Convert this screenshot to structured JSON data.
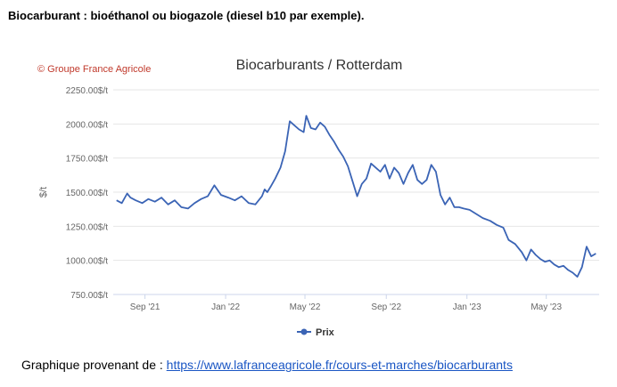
{
  "heading": "Biocarburant : bioéthanol ou biogazole (diesel b10 par exemple).",
  "watermark": "© Groupe France Agricole",
  "footer": {
    "prefix": "Graphique provenant de : ",
    "link_text": "https://www.lafranceagricole.fr/cours-et-marches/biocarburants"
  },
  "colors": {
    "line": "#3b64b5",
    "grid": "#e6e6e6",
    "watermark": "#c0392b",
    "link": "#1a56c4"
  },
  "chart_data": {
    "type": "line",
    "title": "Biocarburants / Rotterdam",
    "xlabel": "",
    "ylabel": "$/t",
    "ylim": [
      750,
      2250
    ],
    "yticks": [
      750,
      1000,
      1250,
      1500,
      1750,
      2000,
      2250
    ],
    "ytick_labels": [
      "750.00$/t",
      "1000.00$/t",
      "1250.00$/t",
      "1500.00$/t",
      "1750.00$/t",
      "2000.00$/t",
      "2250.00$/t"
    ],
    "xlim": [
      "2021-07-15",
      "2023-07-20"
    ],
    "xticks": [
      "2021-09-01",
      "2022-01-01",
      "2022-05-01",
      "2022-09-01",
      "2023-01-01",
      "2023-05-01"
    ],
    "xtick_labels": [
      "Sep '21",
      "Jan '22",
      "May '22",
      "Sep '22",
      "Jan '23",
      "May '23"
    ],
    "grid": true,
    "legend": "bottom-center",
    "series": [
      {
        "name": "Prix",
        "x": [
          "2021-07-20",
          "2021-07-28",
          "2021-08-05",
          "2021-08-10",
          "2021-08-18",
          "2021-08-28",
          "2021-09-06",
          "2021-09-16",
          "2021-09-26",
          "2021-10-06",
          "2021-10-16",
          "2021-10-26",
          "2021-11-05",
          "2021-11-15",
          "2021-11-25",
          "2021-12-05",
          "2021-12-15",
          "2021-12-25",
          "2022-01-05",
          "2022-01-15",
          "2022-01-25",
          "2022-02-05",
          "2022-02-15",
          "2022-02-25",
          "2022-03-01",
          "2022-03-05",
          "2022-03-10",
          "2022-03-17",
          "2022-03-25",
          "2022-04-01",
          "2022-04-08",
          "2022-04-15",
          "2022-04-22",
          "2022-04-29",
          "2022-05-03",
          "2022-05-10",
          "2022-05-17",
          "2022-05-24",
          "2022-05-31",
          "2022-06-07",
          "2022-06-14",
          "2022-06-21",
          "2022-06-28",
          "2022-07-05",
          "2022-07-12",
          "2022-07-19",
          "2022-07-26",
          "2022-08-02",
          "2022-08-09",
          "2022-08-16",
          "2022-08-23",
          "2022-08-30",
          "2022-09-06",
          "2022-09-13",
          "2022-09-20",
          "2022-09-27",
          "2022-10-04",
          "2022-10-11",
          "2022-10-18",
          "2022-10-25",
          "2022-11-01",
          "2022-11-08",
          "2022-11-15",
          "2022-11-22",
          "2022-11-29",
          "2022-12-06",
          "2022-12-13",
          "2022-12-20",
          "2022-12-27",
          "2023-01-05",
          "2023-01-15",
          "2023-01-25",
          "2023-02-05",
          "2023-02-15",
          "2023-02-25",
          "2023-03-05",
          "2023-03-15",
          "2023-03-25",
          "2023-04-01",
          "2023-04-08",
          "2023-04-15",
          "2023-04-22",
          "2023-04-29",
          "2023-05-06",
          "2023-05-13",
          "2023-05-20",
          "2023-05-27",
          "2023-06-03",
          "2023-06-10",
          "2023-06-17",
          "2023-06-24",
          "2023-07-01",
          "2023-07-08",
          "2023-07-15"
        ],
        "values": [
          1440,
          1420,
          1490,
          1460,
          1440,
          1420,
          1450,
          1430,
          1460,
          1410,
          1440,
          1390,
          1380,
          1420,
          1450,
          1470,
          1550,
          1480,
          1460,
          1440,
          1470,
          1420,
          1410,
          1470,
          1520,
          1500,
          1540,
          1600,
          1680,
          1800,
          2020,
          1990,
          1960,
          1940,
          2060,
          1970,
          1960,
          2010,
          1980,
          1920,
          1870,
          1810,
          1760,
          1690,
          1580,
          1470,
          1560,
          1600,
          1710,
          1680,
          1650,
          1700,
          1600,
          1680,
          1640,
          1560,
          1640,
          1700,
          1590,
          1560,
          1590,
          1700,
          1650,
          1480,
          1410,
          1460,
          1390,
          1390,
          1380,
          1370,
          1340,
          1310,
          1290,
          1260,
          1240,
          1150,
          1120,
          1060,
          1000,
          1080,
          1040,
          1010,
          990,
          1000,
          970,
          950,
          960,
          930,
          910,
          880,
          950,
          1100,
          1030,
          1050
        ]
      }
    ]
  }
}
